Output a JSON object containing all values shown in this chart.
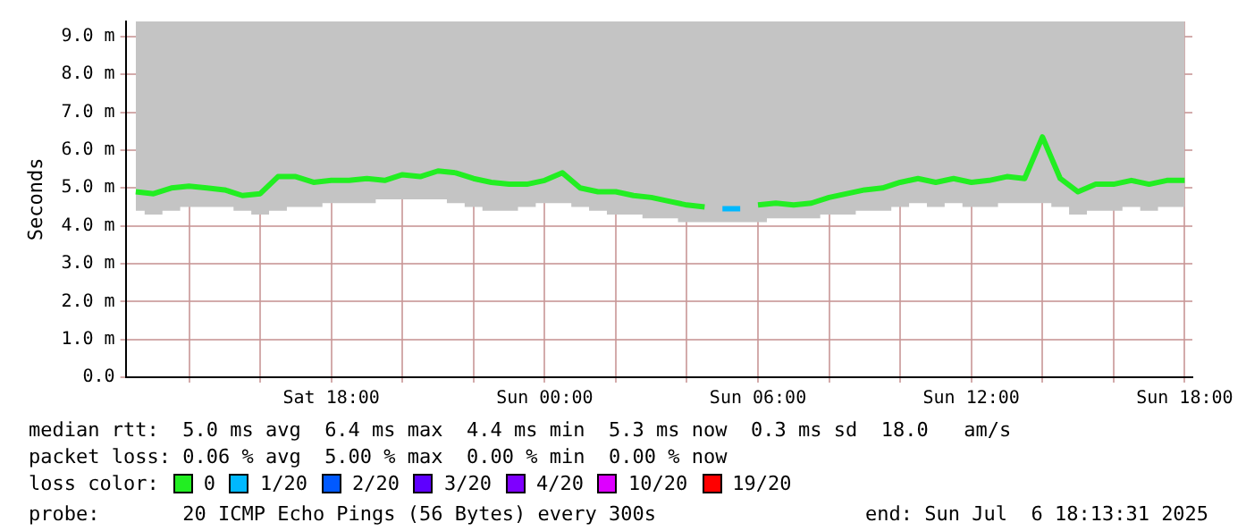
{
  "chart_data": {
    "type": "line",
    "ylabel": "Seconds",
    "legend_title": "loss color:",
    "legend": "bottom",
    "grid": true,
    "marker": "none",
    "line_style": "solid",
    "x": [
      "2025-07-05T12:30",
      "2025-07-05T13:00",
      "2025-07-05T13:30",
      "2025-07-05T14:00",
      "2025-07-05T14:30",
      "2025-07-05T15:00",
      "2025-07-05T15:30",
      "2025-07-05T16:00",
      "2025-07-05T16:30",
      "2025-07-05T17:00",
      "2025-07-05T17:30",
      "2025-07-05T18:00",
      "2025-07-05T18:30",
      "2025-07-05T19:00",
      "2025-07-05T19:30",
      "2025-07-05T20:00",
      "2025-07-05T20:30",
      "2025-07-05T21:00",
      "2025-07-05T21:30",
      "2025-07-05T22:00",
      "2025-07-05T22:30",
      "2025-07-05T23:00",
      "2025-07-05T23:30",
      "2025-07-06T00:00",
      "2025-07-06T00:30",
      "2025-07-06T01:00",
      "2025-07-06T01:30",
      "2025-07-06T02:00",
      "2025-07-06T02:30",
      "2025-07-06T03:00",
      "2025-07-06T03:30",
      "2025-07-06T04:00",
      "2025-07-06T04:30",
      "2025-07-06T05:00",
      "2025-07-06T05:30",
      "2025-07-06T06:00",
      "2025-07-06T06:30",
      "2025-07-06T07:00",
      "2025-07-06T07:30",
      "2025-07-06T08:00",
      "2025-07-06T08:30",
      "2025-07-06T09:00",
      "2025-07-06T09:30",
      "2025-07-06T10:00",
      "2025-07-06T10:30",
      "2025-07-06T11:00",
      "2025-07-06T11:30",
      "2025-07-06T12:00",
      "2025-07-06T12:30",
      "2025-07-06T13:00",
      "2025-07-06T13:30",
      "2025-07-06T14:00",
      "2025-07-06T14:30",
      "2025-07-06T15:00",
      "2025-07-06T15:30",
      "2025-07-06T16:00",
      "2025-07-06T16:30",
      "2025-07-06T17:00",
      "2025-07-06T17:30",
      "2025-07-06T18:00"
    ],
    "series": [
      {
        "name": "0",
        "color": "#22ee22",
        "values": [
          4.9,
          4.85,
          5.0,
          5.05,
          5.0,
          4.95,
          4.8,
          4.85,
          5.3,
          5.3,
          5.15,
          5.2,
          5.2,
          5.25,
          5.2,
          5.35,
          5.3,
          5.45,
          5.4,
          5.25,
          5.15,
          5.1,
          5.1,
          5.2,
          5.4,
          5.0,
          4.9,
          4.9,
          4.8,
          4.75,
          4.65,
          4.55,
          4.5,
          null,
          null,
          4.55,
          4.6,
          4.55,
          4.6,
          4.75,
          4.85,
          4.95,
          5.0,
          5.15,
          5.25,
          5.15,
          5.25,
          5.15,
          5.2,
          5.3,
          5.25,
          6.35,
          5.25,
          4.9,
          5.1,
          5.1,
          5.2,
          5.1,
          5.2,
          5.2
        ],
        "lower": [
          4.4,
          4.3,
          4.4,
          4.5,
          4.5,
          4.5,
          4.4,
          4.3,
          4.4,
          4.5,
          4.5,
          4.6,
          4.6,
          4.6,
          4.7,
          4.7,
          4.7,
          4.7,
          4.6,
          4.5,
          4.4,
          4.4,
          4.5,
          4.6,
          4.6,
          4.5,
          4.4,
          4.3,
          4.3,
          4.2,
          4.2,
          4.1,
          4.1,
          4.1,
          4.1,
          4.1,
          4.2,
          4.2,
          4.2,
          4.3,
          4.3,
          4.4,
          4.4,
          4.5,
          4.6,
          4.5,
          4.6,
          4.5,
          4.5,
          4.6,
          4.6,
          4.6,
          4.5,
          4.3,
          4.4,
          4.4,
          4.5,
          4.4,
          4.5,
          4.5
        ],
        "upper": [
          9.4,
          9.4,
          9.4,
          9.4,
          9.4,
          9.4,
          9.4,
          9.4,
          9.4,
          9.4,
          9.4,
          9.4,
          9.4,
          9.4,
          9.4,
          9.4,
          9.4,
          9.4,
          9.4,
          9.4,
          9.4,
          9.4,
          9.4,
          9.4,
          9.4,
          9.4,
          9.4,
          9.4,
          9.4,
          9.4,
          9.4,
          9.4,
          9.4,
          9.4,
          9.4,
          9.4,
          9.4,
          9.4,
          9.4,
          9.4,
          9.4,
          9.4,
          9.4,
          9.4,
          9.4,
          9.4,
          9.4,
          9.4,
          9.4,
          9.4,
          9.4,
          9.4,
          9.4,
          9.4,
          9.4,
          9.4,
          9.4,
          9.4,
          9.4,
          9.4
        ]
      },
      {
        "name": "1/20",
        "color": "#00b8ff",
        "values": [
          null,
          null,
          null,
          null,
          null,
          null,
          null,
          null,
          null,
          null,
          null,
          null,
          null,
          null,
          null,
          null,
          null,
          null,
          null,
          null,
          null,
          null,
          null,
          null,
          null,
          null,
          null,
          null,
          null,
          null,
          null,
          null,
          null,
          4.45,
          4.45,
          null,
          null,
          null,
          null,
          null,
          null,
          null,
          null,
          null,
          null,
          null,
          null,
          null,
          null,
          null,
          null,
          null,
          null,
          null,
          null,
          null,
          null,
          null,
          null,
          null
        ]
      },
      {
        "name": "2/20",
        "color": "#0059ff",
        "values": [
          null,
          null,
          null,
          null,
          null,
          null,
          null,
          null,
          null,
          null,
          null,
          null,
          null,
          null,
          null,
          null,
          null,
          null,
          null,
          null,
          null,
          null,
          null,
          null,
          null,
          null,
          null,
          null,
          null,
          null,
          null,
          null,
          null,
          null,
          null,
          null,
          null,
          null,
          null,
          null,
          null,
          null,
          null,
          null,
          null,
          null,
          null,
          null,
          null,
          null,
          null,
          null,
          null,
          null,
          null,
          null,
          null,
          null,
          null,
          null
        ]
      },
      {
        "name": "3/20",
        "color": "#5e00ff",
        "values": [
          null,
          null,
          null,
          null,
          null,
          null,
          null,
          null,
          null,
          null,
          null,
          null,
          null,
          null,
          null,
          null,
          null,
          null,
          null,
          null,
          null,
          null,
          null,
          null,
          null,
          null,
          null,
          null,
          null,
          null,
          null,
          null,
          null,
          null,
          null,
          null,
          null,
          null,
          null,
          null,
          null,
          null,
          null,
          null,
          null,
          null,
          null,
          null,
          null,
          null,
          null,
          null,
          null,
          null,
          null,
          null,
          null,
          null,
          null,
          null
        ]
      },
      {
        "name": "4/20",
        "color": "#7e00ff",
        "values": [
          null,
          null,
          null,
          null,
          null,
          null,
          null,
          null,
          null,
          null,
          null,
          null,
          null,
          null,
          null,
          null,
          null,
          null,
          null,
          null,
          null,
          null,
          null,
          null,
          null,
          null,
          null,
          null,
          null,
          null,
          null,
          null,
          null,
          null,
          null,
          null,
          null,
          null,
          null,
          null,
          null,
          null,
          null,
          null,
          null,
          null,
          null,
          null,
          null,
          null,
          null,
          null,
          null,
          null,
          null,
          null,
          null,
          null,
          null,
          null
        ]
      },
      {
        "name": "10/20",
        "color": "#dd00ff",
        "values": [
          null,
          null,
          null,
          null,
          null,
          null,
          null,
          null,
          null,
          null,
          null,
          null,
          null,
          null,
          null,
          null,
          null,
          null,
          null,
          null,
          null,
          null,
          null,
          null,
          null,
          null,
          null,
          null,
          null,
          null,
          null,
          null,
          null,
          null,
          null,
          null,
          null,
          null,
          null,
          null,
          null,
          null,
          null,
          null,
          null,
          null,
          null,
          null,
          null,
          null,
          null,
          null,
          null,
          null,
          null,
          null,
          null,
          null,
          null,
          null
        ]
      },
      {
        "name": "19/20",
        "color": "#ff0000",
        "values": [
          null,
          null,
          null,
          null,
          null,
          null,
          null,
          null,
          null,
          null,
          null,
          null,
          null,
          null,
          null,
          null,
          null,
          null,
          null,
          null,
          null,
          null,
          null,
          null,
          null,
          null,
          null,
          null,
          null,
          null,
          null,
          null,
          null,
          null,
          null,
          null,
          null,
          null,
          null,
          null,
          null,
          null,
          null,
          null,
          null,
          null,
          null,
          null,
          null,
          null,
          null,
          null,
          null,
          null,
          null,
          null,
          null,
          null,
          null,
          null
        ]
      }
    ],
    "xlim": [
      "2025-07-05T12:13",
      "2025-07-06T18:13"
    ],
    "xticks": [
      {
        "value": "2025-07-05T14:00",
        "label": null
      },
      {
        "value": "2025-07-05T16:00",
        "label": null
      },
      {
        "value": "2025-07-05T18:00",
        "label": "Sat 18:00"
      },
      {
        "value": "2025-07-05T20:00",
        "label": null
      },
      {
        "value": "2025-07-05T22:00",
        "label": null
      },
      {
        "value": "2025-07-06T00:00",
        "label": "Sun 00:00"
      },
      {
        "value": "2025-07-06T02:00",
        "label": null
      },
      {
        "value": "2025-07-06T04:00",
        "label": null
      },
      {
        "value": "2025-07-06T06:00",
        "label": "Sun 06:00"
      },
      {
        "value": "2025-07-06T08:00",
        "label": null
      },
      {
        "value": "2025-07-06T10:00",
        "label": null
      },
      {
        "value": "2025-07-06T12:00",
        "label": "Sun 12:00"
      },
      {
        "value": "2025-07-06T14:00",
        "label": null
      },
      {
        "value": "2025-07-06T16:00",
        "label": null
      },
      {
        "value": "2025-07-06T18:00",
        "label": "Sun 18:00"
      }
    ],
    "ylim": [
      0,
      9.4
    ],
    "yticks": [
      {
        "value": 0,
        "label": "0.0"
      },
      {
        "value": 1,
        "label": "1.0 m"
      },
      {
        "value": 2,
        "label": "2.0 m"
      },
      {
        "value": 3,
        "label": "3.0 m"
      },
      {
        "value": 4,
        "label": "4.0 m"
      },
      {
        "value": 5,
        "label": "5.0 m"
      },
      {
        "value": 6,
        "label": "6.0 m"
      },
      {
        "value": 7,
        "label": "7.0 m"
      },
      {
        "value": 8,
        "label": "8.0 m"
      },
      {
        "value": 9,
        "label": "9.0 m"
      }
    ],
    "annotations": [
      "median rtt:  5.0 ms avg  6.4 ms max  4.4 ms min  5.3 ms now  0.3 ms sd  18.0   am/s",
      "packet loss: 0.06 % avg  5.00 % max  0.00 % min  0.00 % now",
      "probe:       20 ICMP Echo Pings (56 Bytes) every 300s",
      "end: Sun Jul  6 18:13:31 2025"
    ]
  }
}
